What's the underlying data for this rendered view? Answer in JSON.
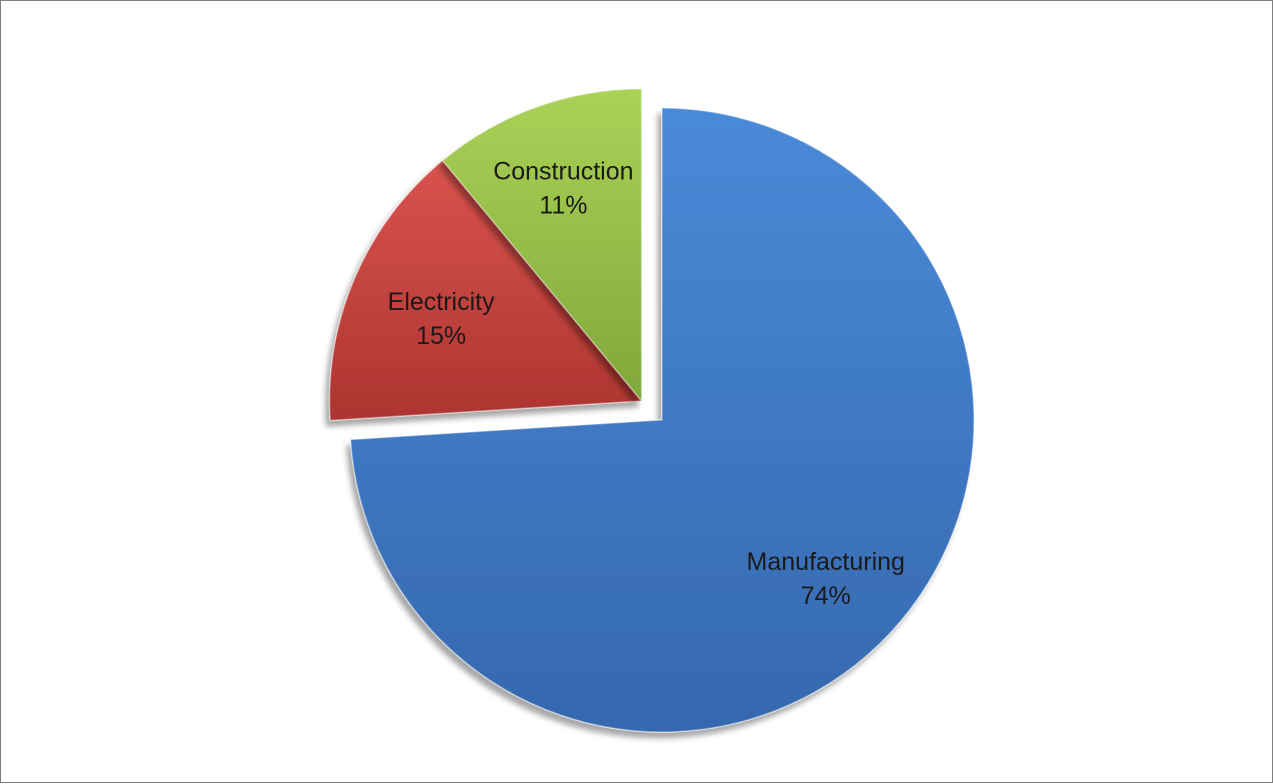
{
  "chart_data": {
    "type": "pie",
    "title": "",
    "slices": [
      {
        "name": "Manufacturing",
        "value": 74,
        "label": "74%",
        "color": "#3f7ccc",
        "exploded": false
      },
      {
        "name": "Electricity",
        "value": 15,
        "label": "15%",
        "color": "#c2403b",
        "exploded": true
      },
      {
        "name": "Construction",
        "value": 11,
        "label": "11%",
        "color": "#93bd44",
        "exploded": true
      }
    ],
    "legend": "none"
  }
}
